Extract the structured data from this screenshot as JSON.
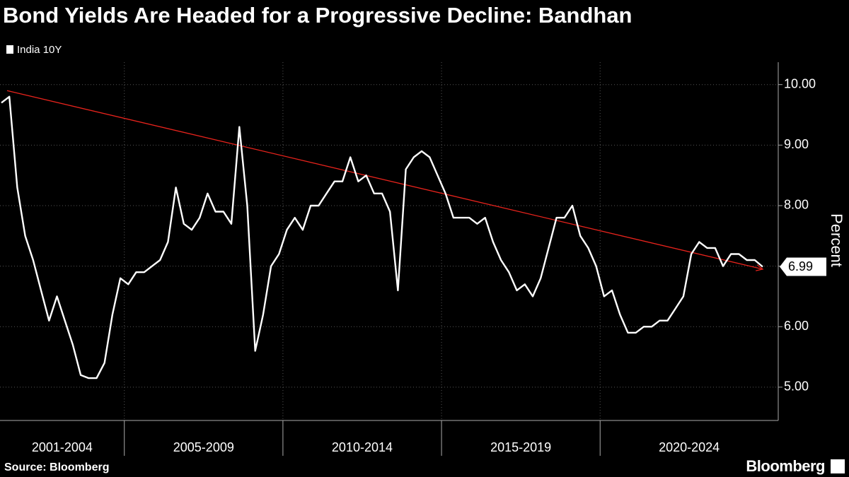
{
  "chart_data": {
    "type": "line",
    "title": "Bond Yields Are Headed for a Progressive Decline: Bandhan",
    "y_axis_label": "Percent",
    "source": "Source: Bloomberg",
    "brand": "Bloomberg",
    "categories": [
      "2001-2004",
      "2005-2009",
      "2010-2014",
      "2015-2019",
      "2020-2024"
    ],
    "series": [
      {
        "name": "India 10Y",
        "color": "#ffffff",
        "values": [
          [
            9.7,
            9.8,
            8.3,
            7.5,
            7.1,
            6.6,
            6.1,
            6.5,
            6.1,
            5.7,
            5.2,
            5.15,
            5.15,
            5.4,
            6.2,
            6.8
          ],
          [
            6.7,
            6.9,
            6.9,
            7.0,
            7.1,
            7.4,
            8.3,
            7.7,
            7.6,
            7.8,
            8.2,
            7.9,
            7.9,
            7.7,
            9.3,
            8.0,
            5.6,
            6.2,
            7.0,
            7.2
          ],
          [
            7.6,
            7.8,
            7.6,
            8.0,
            8.0,
            8.2,
            8.4,
            8.4,
            8.8,
            8.4,
            8.5,
            8.2,
            8.2,
            7.9,
            6.6,
            8.6,
            8.8,
            8.9,
            8.8,
            8.5
          ],
          [
            8.2,
            7.8,
            7.8,
            7.8,
            7.7,
            7.8,
            7.4,
            7.1,
            6.9,
            6.6,
            6.7,
            6.5,
            6.8,
            7.3,
            7.8,
            7.8,
            8.0,
            7.5,
            7.3,
            7.0
          ],
          [
            6.5,
            6.6,
            6.2,
            5.9,
            5.9,
            6.0,
            6.0,
            6.1,
            6.1,
            6.3,
            6.5,
            7.2,
            7.4,
            7.3,
            7.3,
            7.0,
            7.2,
            7.2,
            7.1,
            7.1,
            6.99
          ]
        ]
      }
    ],
    "trend": {
      "color": "#e8231c",
      "start": 9.9,
      "end": 6.95
    },
    "ylim": [
      4.45,
      10.37
    ],
    "yticks": [
      {
        "value": 5,
        "label": "5.00"
      },
      {
        "value": 6,
        "label": "6.00"
      },
      {
        "value": 7,
        "label": "7.00"
      },
      {
        "value": 8,
        "label": "8.00"
      },
      {
        "value": 9,
        "label": "9.00"
      },
      {
        "value": 10,
        "label": "10.00"
      }
    ],
    "grid": true
  }
}
